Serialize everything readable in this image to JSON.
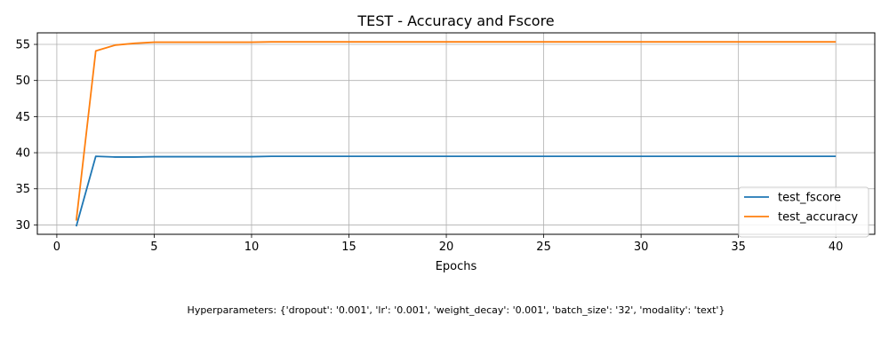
{
  "chart_data": {
    "type": "line",
    "title": "TEST - Accuracy and Fscore",
    "xlabel": "Epochs",
    "ylabel": "",
    "xlim": [
      -1,
      42
    ],
    "ylim": [
      28.7,
      56.6
    ],
    "xticks": [
      0,
      5,
      10,
      15,
      20,
      25,
      30,
      35,
      40
    ],
    "yticks": [
      30,
      35,
      40,
      45,
      50,
      55
    ],
    "grid": true,
    "legend_position": "lower-right",
    "series": [
      {
        "name": "test_fscore",
        "color": "#1f77b4",
        "x": [
          1,
          2,
          3,
          4,
          5,
          6,
          7,
          8,
          9,
          10,
          11,
          12,
          13,
          14,
          15,
          16,
          17,
          18,
          19,
          20,
          21,
          22,
          23,
          24,
          25,
          26,
          27,
          28,
          29,
          30,
          31,
          32,
          33,
          34,
          35,
          36,
          37,
          38,
          39,
          40
        ],
        "values": [
          29.8,
          39.5,
          39.4,
          39.4,
          39.45,
          39.45,
          39.45,
          39.45,
          39.45,
          39.45,
          39.5,
          39.5,
          39.5,
          39.5,
          39.5,
          39.5,
          39.5,
          39.5,
          39.5,
          39.5,
          39.5,
          39.5,
          39.5,
          39.5,
          39.5,
          39.5,
          39.5,
          39.5,
          39.5,
          39.5,
          39.5,
          39.5,
          39.5,
          39.5,
          39.5,
          39.5,
          39.5,
          39.5,
          39.5,
          39.5
        ]
      },
      {
        "name": "test_accuracy",
        "color": "#ff7f0e",
        "x": [
          1,
          2,
          3,
          4,
          5,
          6,
          7,
          8,
          9,
          10,
          11,
          12,
          13,
          14,
          15,
          16,
          17,
          18,
          19,
          20,
          21,
          22,
          23,
          24,
          25,
          26,
          27,
          28,
          29,
          30,
          31,
          32,
          33,
          34,
          35,
          36,
          37,
          38,
          39,
          40
        ],
        "values": [
          30.6,
          54.1,
          54.9,
          55.15,
          55.3,
          55.3,
          55.3,
          55.3,
          55.3,
          55.3,
          55.35,
          55.35,
          55.35,
          55.35,
          55.35,
          55.35,
          55.35,
          55.35,
          55.35,
          55.35,
          55.35,
          55.35,
          55.35,
          55.35,
          55.35,
          55.35,
          55.35,
          55.35,
          55.35,
          55.35,
          55.35,
          55.35,
          55.35,
          55.35,
          55.35,
          55.35,
          55.35,
          55.35,
          55.35,
          55.35
        ]
      }
    ]
  },
  "footnote": "Hyperparameters: {'dropout': '0.001', 'lr': '0.001', 'weight_decay': '0.001', 'batch_size': '32', 'modality': 'text'}"
}
